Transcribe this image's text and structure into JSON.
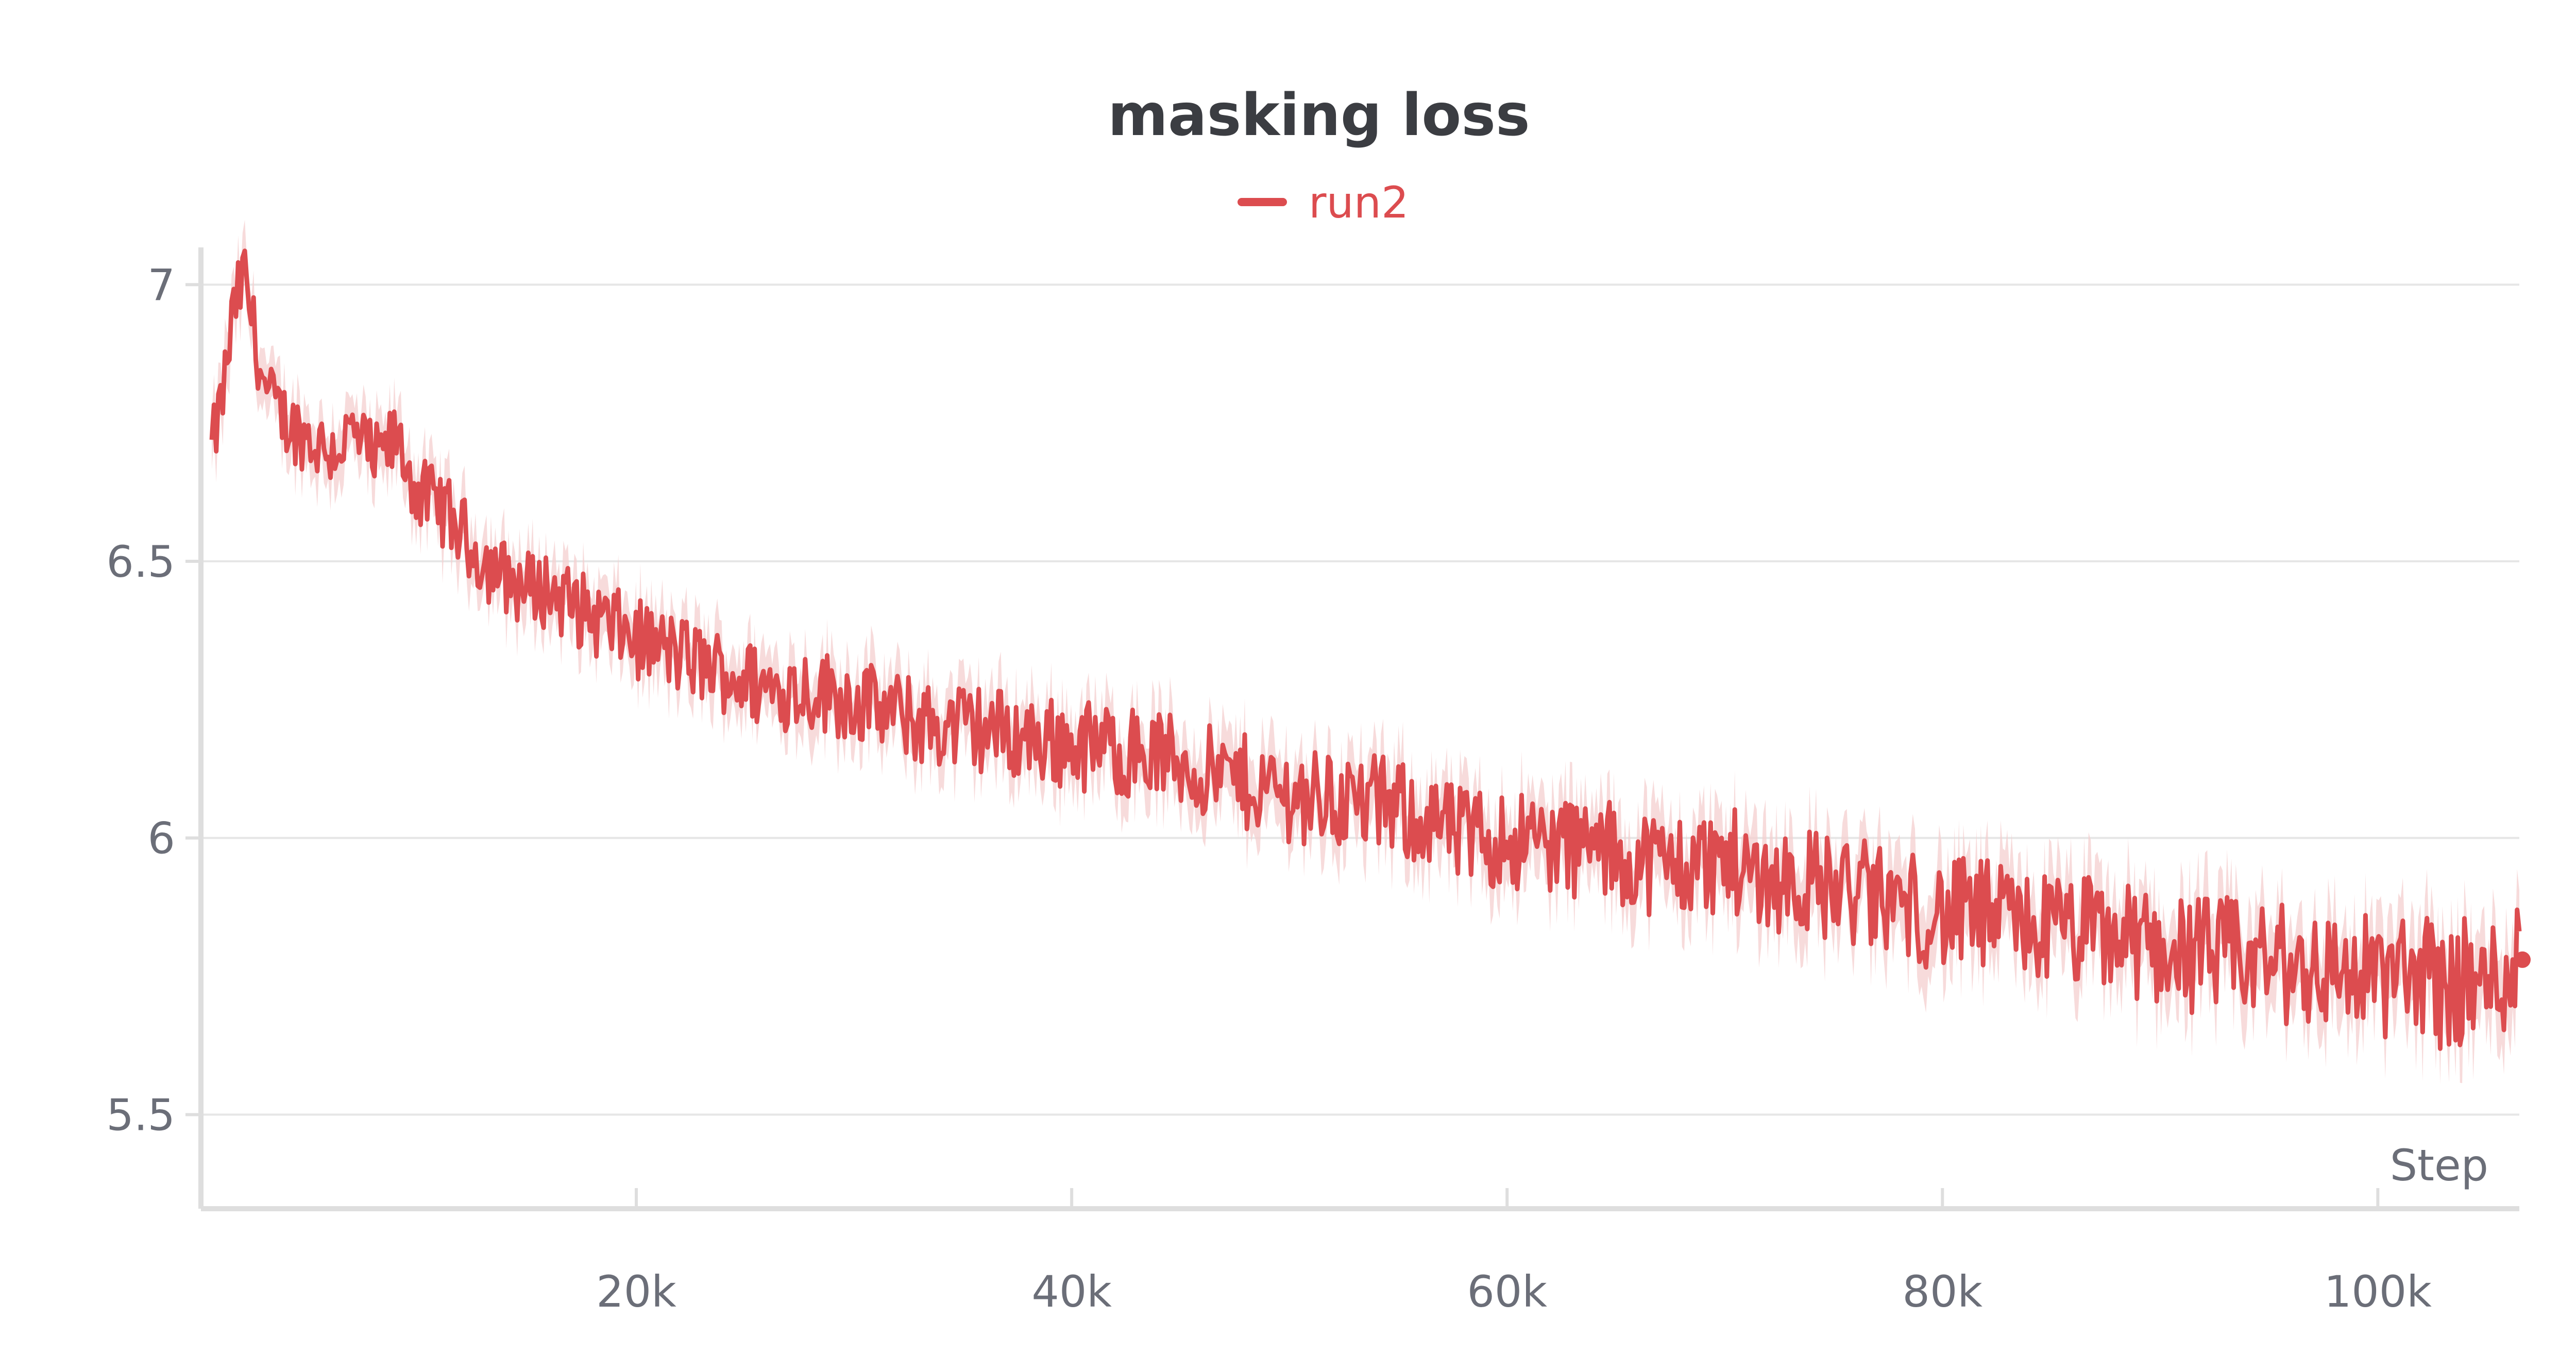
{
  "chart_data": {
    "type": "line",
    "title": "masking loss",
    "xlabel": "Step",
    "ylabel": "",
    "xlim": [
      0,
      106500
    ],
    "ylim": [
      5.33,
      7.03
    ],
    "x_ticks": [
      20000,
      40000,
      60000,
      80000,
      100000
    ],
    "x_tick_labels": [
      "20k",
      "40k",
      "60k",
      "80k",
      "100k"
    ],
    "y_ticks": [
      5.5,
      6,
      6.5,
      7
    ],
    "y_tick_labels": [
      "5.5",
      "6",
      "6.5",
      "7"
    ],
    "grid": "horizontal",
    "legend": "top-center",
    "series": [
      {
        "name": "run2",
        "color": "#dc4c4f",
        "band_color": "#f4cfcf",
        "x": [
          500,
          1000,
          1500,
          2000,
          2500,
          3000,
          4000,
          5000,
          6000,
          7000,
          8000,
          9000,
          10000,
          11000,
          12000,
          13000,
          14000,
          15000,
          16000,
          17000,
          18000,
          19000,
          20000,
          22000,
          24000,
          26000,
          28000,
          30000,
          32000,
          34000,
          36000,
          38000,
          40000,
          42000,
          44000,
          46000,
          48000,
          50000,
          52000,
          54000,
          56000,
          58000,
          60000,
          62000,
          64000,
          66000,
          68000,
          70000,
          72000,
          74000,
          76000,
          78000,
          80000,
          82000,
          84000,
          86000,
          88000,
          90000,
          92000,
          94000,
          96000,
          98000,
          100000,
          101000,
          102000,
          103000,
          104000,
          105000,
          106000,
          106500
        ],
        "y": [
          6.7,
          6.8,
          6.95,
          7.02,
          6.9,
          6.8,
          6.75,
          6.72,
          6.7,
          6.73,
          6.68,
          6.72,
          6.62,
          6.6,
          6.55,
          6.5,
          6.47,
          6.45,
          6.45,
          6.42,
          6.4,
          6.38,
          6.36,
          6.33,
          6.3,
          6.27,
          6.27,
          6.25,
          6.22,
          6.2,
          6.2,
          6.18,
          6.17,
          6.16,
          6.15,
          6.12,
          6.1,
          6.08,
          6.07,
          6.06,
          6.04,
          6.0,
          6.0,
          5.99,
          5.98,
          5.96,
          5.95,
          5.96,
          5.93,
          5.92,
          5.9,
          5.88,
          5.86,
          5.86,
          5.84,
          5.83,
          5.82,
          5.8,
          5.79,
          5.78,
          5.77,
          5.76,
          5.75,
          5.75,
          5.76,
          5.73,
          5.74,
          5.73,
          5.77,
          5.78
        ],
        "noise_amplitude": 0.09
      }
    ]
  }
}
